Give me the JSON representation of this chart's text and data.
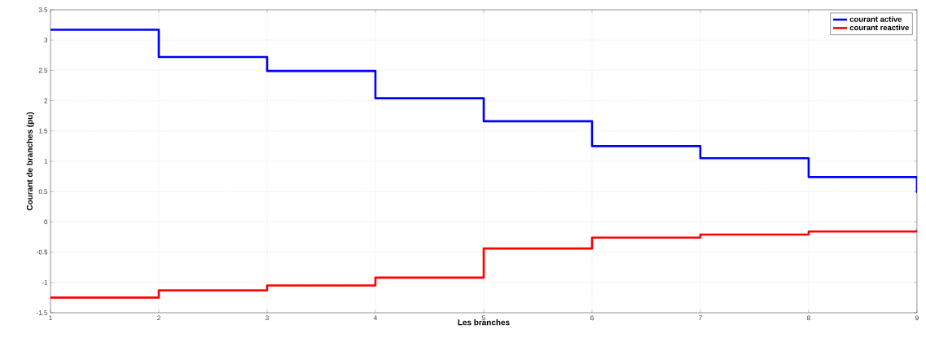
{
  "chart_data": {
    "type": "step",
    "xlabel": "Les branches",
    "ylabel": "Courant de branches (pu)",
    "x": [
      1,
      2,
      3,
      4,
      5,
      6,
      7,
      8,
      9
    ],
    "series": [
      {
        "name": "courant active",
        "color": "#0000ff",
        "values": [
          3.17,
          2.72,
          2.49,
          2.04,
          1.66,
          1.25,
          1.05,
          0.74,
          0.48
        ]
      },
      {
        "name": "courant reactive",
        "color": "#ff0000",
        "values": [
          -1.25,
          -1.13,
          -1.05,
          -0.92,
          -0.44,
          -0.26,
          -0.21,
          -0.16,
          -0.13
        ]
      }
    ],
    "xlim": [
      1,
      9
    ],
    "ylim": [
      -1.5,
      3.5
    ],
    "xticks": [
      1,
      2,
      3,
      4,
      5,
      6,
      7,
      8,
      9
    ],
    "yticks": [
      -1.5,
      -1,
      -0.5,
      0,
      0.5,
      1,
      1.5,
      2,
      2.5,
      3,
      3.5
    ],
    "grid": true,
    "legend": "top right",
    "marker": "none",
    "line_style": "solid"
  }
}
